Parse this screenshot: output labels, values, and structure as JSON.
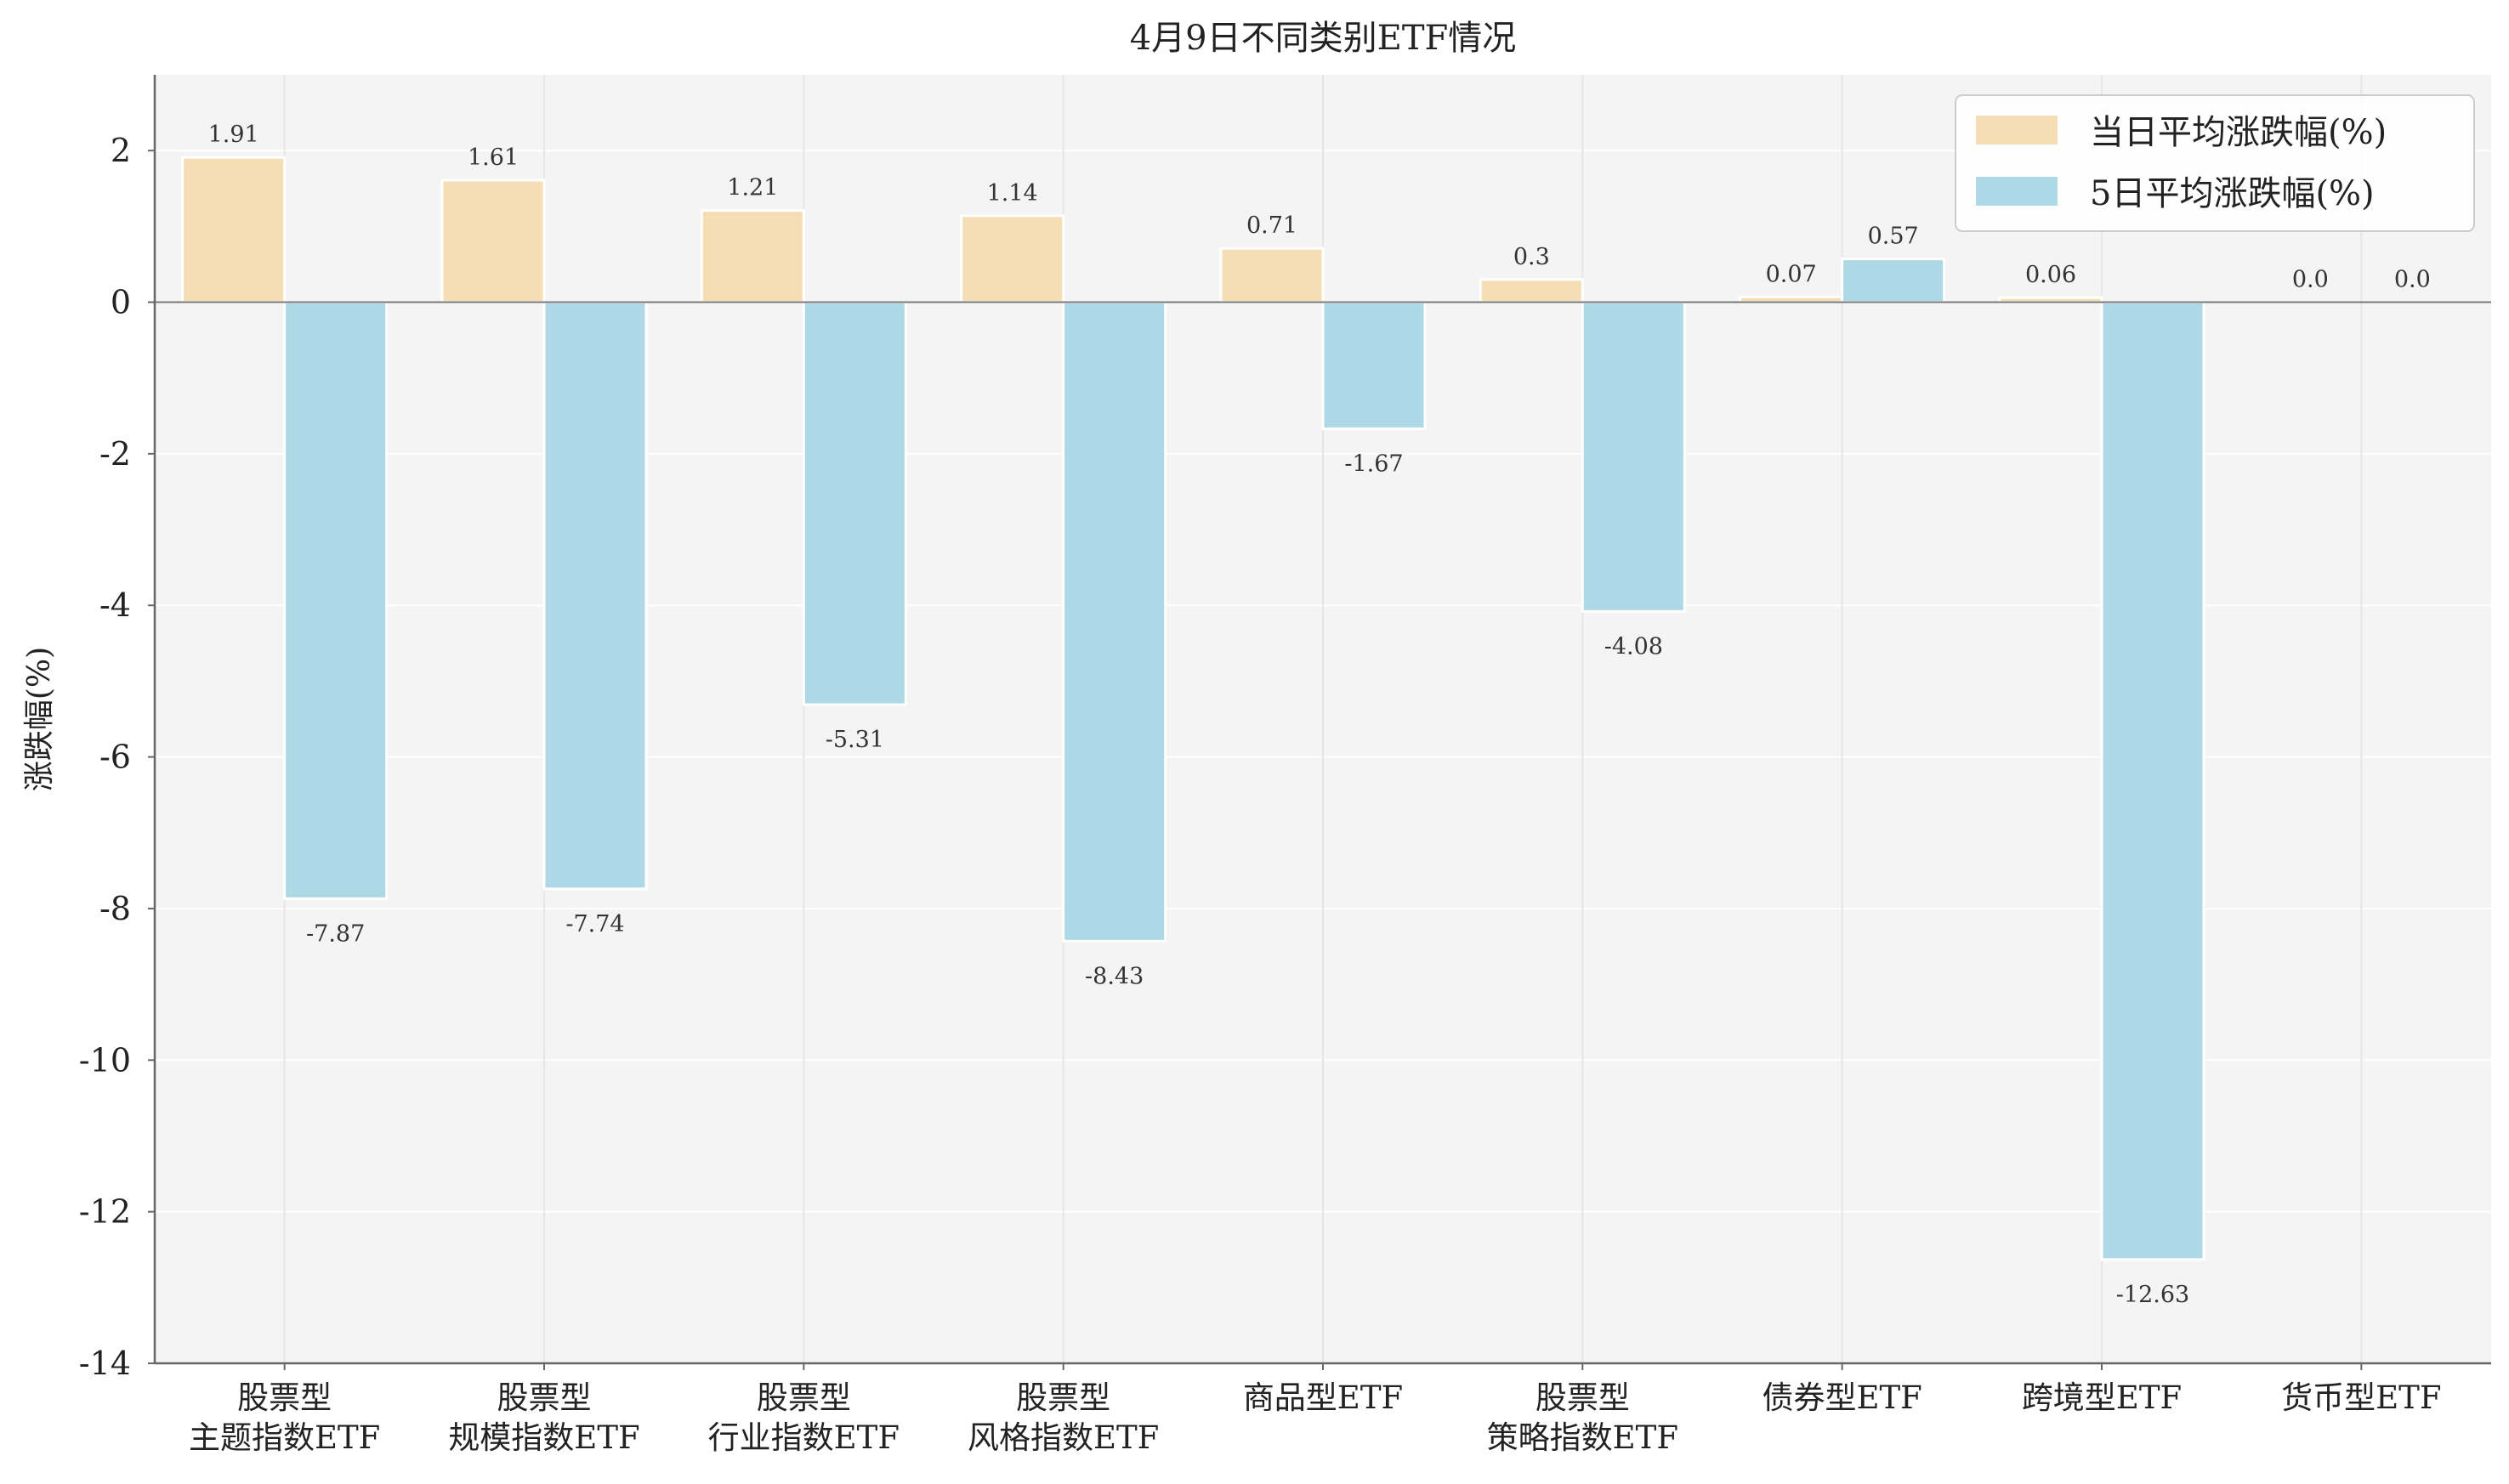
{
  "chart_data": {
    "type": "bar",
    "title": "4月9日不同类别ETF情况",
    "ylabel": "涨跌幅(%)",
    "xlabel": "",
    "ylim": [
      -14,
      3
    ],
    "yticks": [
      2,
      0,
      -2,
      -4,
      -6,
      -8,
      -10,
      -12,
      -14
    ],
    "ytick_labels": [
      "2",
      "0",
      "-2",
      "-4",
      "-6",
      "-8",
      "-10",
      "-12",
      "-14"
    ],
    "categories": [
      [
        "股票型",
        "主题指数ETF"
      ],
      [
        "股票型",
        "规模指数ETF"
      ],
      [
        "股票型",
        "行业指数ETF"
      ],
      [
        "股票型",
        "风格指数ETF"
      ],
      [
        "商品型ETF"
      ],
      [
        "股票型",
        "策略指数ETF"
      ],
      [
        "债券型ETF"
      ],
      [
        "跨境型ETF"
      ],
      [
        "货币型ETF"
      ]
    ],
    "series": [
      {
        "name": "当日平均涨跌幅(%)",
        "color": "#f5deb3",
        "values": [
          1.91,
          1.61,
          1.21,
          1.14,
          0.71,
          0.3,
          0.07,
          0.06,
          0.0
        ],
        "labels": [
          "1.91",
          "1.61",
          "1.21",
          "1.14",
          "0.71",
          "0.3",
          "0.07",
          "0.06",
          "0.0"
        ]
      },
      {
        "name": "5日平均涨跌幅(%)",
        "color": "#add8e6",
        "values": [
          -7.87,
          -7.74,
          -5.31,
          -8.43,
          -1.67,
          -4.08,
          0.57,
          -12.63,
          0.0
        ],
        "labels": [
          "-7.87",
          "-7.74",
          "-5.31",
          "-8.43",
          "-1.67",
          "-4.08",
          "0.57",
          "-12.63",
          "0.0"
        ]
      }
    ],
    "grid": true,
    "legend_position": "top-right",
    "plot_background": "#f4f4f4"
  }
}
